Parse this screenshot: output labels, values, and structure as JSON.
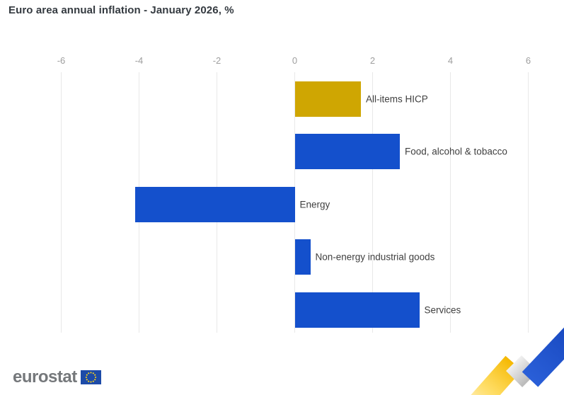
{
  "title": "Euro area annual inflation - January 2026, %",
  "chart_data": {
    "type": "bar",
    "orientation": "horizontal",
    "title": "Euro area annual inflation - January 2026, %",
    "categories": [
      "All-items HICP",
      "Food, alcohol & tobacco",
      "Energy",
      "Non-energy industrial goods",
      "Services"
    ],
    "values": [
      1.7,
      2.7,
      -4.1,
      0.4,
      3.2
    ],
    "unit": "%",
    "xlim": [
      -6,
      6
    ],
    "x_ticks": [
      -6,
      -4,
      -2,
      0,
      2,
      4,
      6
    ],
    "grid": "vertical",
    "legend": "none",
    "bar_colors": [
      "#cfa602",
      "#1450cc",
      "#1450cc",
      "#1450cc",
      "#1450cc"
    ]
  },
  "colors": {
    "highlight_gold": "#cfa602",
    "primary_blue": "#1450cc",
    "gridline": "#e8e8e8",
    "tick_label": "#9e9e9e",
    "bar_label": "#3f3f3f",
    "title_text": "#343a40",
    "logo_gray": "#75787b",
    "flag_blue": "#1d4ba8",
    "star_yellow": "#ffd617",
    "ribbon_yellow": "#ffc400",
    "ribbon_gray": "#c4c4c4",
    "ribbon_blue": "#1e50ce"
  },
  "footer": {
    "logo_text": "eurostat"
  }
}
